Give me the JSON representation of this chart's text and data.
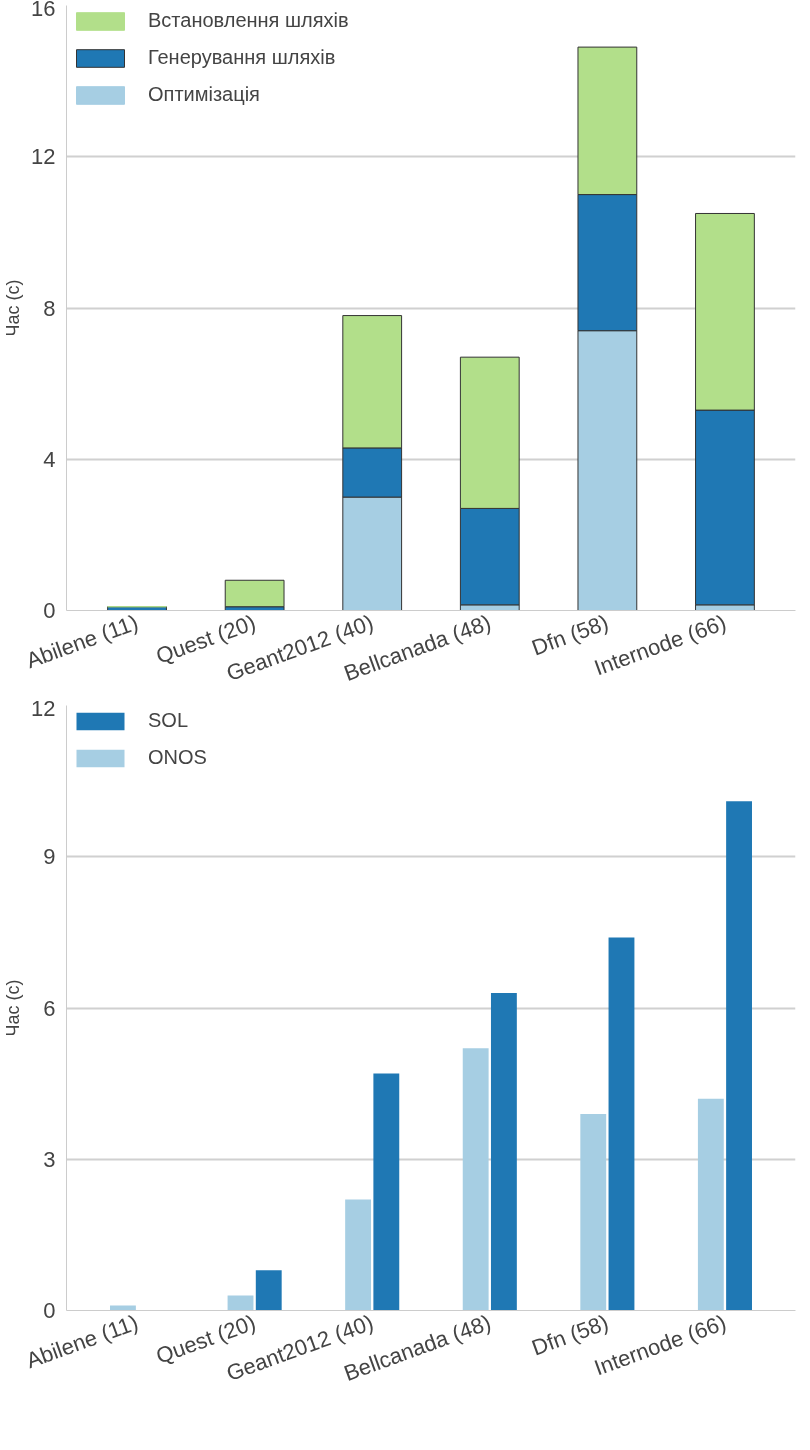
{
  "chart_data": [
    {
      "type": "bar",
      "stacked": true,
      "ylabel": "Час (с)",
      "categories": [
        "Abilene (11)",
        "Quest (20)",
        "Geant2012 (40)",
        "Bellcanada (48)",
        "Dfn (58)",
        "Internode (66)"
      ],
      "ylim": [
        0,
        16
      ],
      "yticks": [
        0,
        4,
        8,
        12,
        16
      ],
      "grid": "y",
      "legend": "top left",
      "series": [
        {
          "name": "Оптимізація",
          "color": "#a6cee3",
          "values": [
            0,
            0,
            3.0,
            0.15,
            7.4,
            0.15
          ]
        },
        {
          "name": "Генерування шляхів",
          "color": "#1f78b4",
          "values": [
            0.1,
            0.1,
            1.3,
            2.55,
            3.6,
            5.15
          ]
        },
        {
          "name": "Встановлення шляхів",
          "color": "#b2df8a",
          "values": [
            0,
            0.7,
            3.5,
            4.0,
            3.9,
            5.2
          ]
        }
      ]
    },
    {
      "type": "bar",
      "ylabel": "Час (с)",
      "categories": [
        "Abilene (11)",
        "Quest (20)",
        "Geant2012 (40)",
        "Bellcanada (48)",
        "Dfn (58)",
        "Internode (66)"
      ],
      "ylim": [
        0,
        12
      ],
      "yticks": [
        0,
        3,
        6,
        9,
        12
      ],
      "grid": "y",
      "legend": "top left",
      "series": [
        {
          "name": "ONOS",
          "color": "#a6cee3",
          "values": [
            0.1,
            0.3,
            2.2,
            5.2,
            3.9,
            4.2
          ]
        },
        {
          "name": "SOL",
          "color": "#1f78b4",
          "values": [
            0,
            0.8,
            4.7,
            6.3,
            7.4,
            10.1
          ]
        }
      ]
    }
  ]
}
